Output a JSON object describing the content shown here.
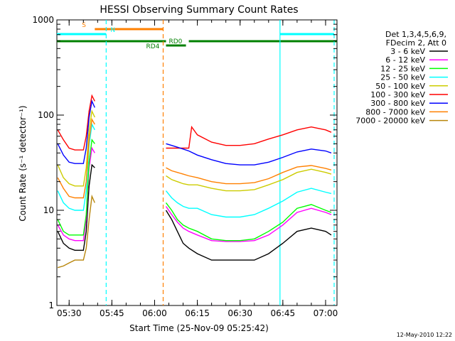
{
  "chart_data": {
    "type": "line",
    "title": "HESSI Observing Summary Count Rates",
    "xlabel": "Start Time (25-Nov-09 05:25:42)",
    "ylabel": "Count Rate (s⁻¹ detector⁻¹)",
    "yscale": "log",
    "ylim": [
      1,
      1000
    ],
    "xlim": [
      "05:25:42",
      "07:04:00"
    ],
    "x_tick_labels": [
      "05:30",
      "05:45",
      "06:00",
      "06:15",
      "06:30",
      "06:45",
      "07:00"
    ],
    "y_tick_labels": [
      "1",
      "10",
      "100",
      "1000"
    ],
    "legend_placement": "right",
    "legend_header": [
      "Det 1,3,4,5,6,9,",
      "FDecim 2, Att 0"
    ],
    "date_stamp": "12-May-2010 12:22",
    "series": [
      {
        "name": "3 - 6 keV",
        "color": "#000000",
        "x": [
          "05:26",
          "05:28",
          "05:30",
          "05:32",
          "05:35",
          "05:36",
          "05:37",
          "05:38",
          "05:39",
          "06:03",
          "06:04",
          "06:06",
          "06:08",
          "06:10",
          "06:12",
          "06:15",
          "06:20",
          "06:25",
          "06:30",
          "06:35",
          "06:40",
          "06:45",
          "06:50",
          "06:55",
          "07:00",
          "07:02"
        ],
        "y": [
          6,
          4.5,
          4,
          3.8,
          3.8,
          6,
          18,
          30,
          28,
          null,
          10,
          8,
          6,
          4.5,
          4,
          3.5,
          3,
          3,
          3,
          3,
          3.5,
          4.5,
          6,
          6.5,
          6,
          5.5
        ]
      },
      {
        "name": "6 - 12 keV",
        "color": "#ff00ff",
        "x": [
          "05:26",
          "05:28",
          "05:30",
          "05:32",
          "05:35",
          "05:36",
          "05:37",
          "05:38",
          "05:39",
          "06:03",
          "06:04",
          "06:06",
          "06:08",
          "06:10",
          "06:12",
          "06:15",
          "06:20",
          "06:25",
          "06:30",
          "06:35",
          "06:40",
          "06:45",
          "06:50",
          "06:55",
          "07:00",
          "07:02"
        ],
        "y": [
          7,
          5.5,
          5,
          4.8,
          4.8,
          8,
          28,
          45,
          40,
          null,
          11,
          9,
          7.5,
          6.5,
          6,
          5.5,
          4.8,
          4.7,
          4.7,
          4.8,
          5.5,
          7,
          9.5,
          10.5,
          9.5,
          9
        ]
      },
      {
        "name": "12 - 25 keV",
        "color": "#00ff00",
        "x": [
          "05:26",
          "05:28",
          "05:30",
          "05:32",
          "05:35",
          "05:36",
          "05:37",
          "05:38",
          "05:39",
          "06:03",
          "06:04",
          "06:06",
          "06:08",
          "06:10",
          "06:12",
          "06:15",
          "06:20",
          "06:25",
          "06:30",
          "06:35",
          "06:40",
          "06:45",
          "06:50",
          "06:55",
          "07:00",
          "07:02"
        ],
        "y": [
          8,
          6,
          5.5,
          5.5,
          5.5,
          9,
          32,
          55,
          50,
          null,
          12,
          10,
          8,
          7,
          6.5,
          6,
          5,
          4.8,
          4.8,
          5,
          6,
          7.5,
          10.5,
          11.5,
          10,
          9.5
        ]
      },
      {
        "name": "25 - 50 keV",
        "color": "#00ffff",
        "x": [
          "05:26",
          "05:28",
          "05:30",
          "05:32",
          "05:35",
          "05:36",
          "05:37",
          "05:38",
          "05:39",
          "06:03",
          "06:04",
          "06:06",
          "06:08",
          "06:10",
          "06:12",
          "06:15",
          "06:20",
          "06:25",
          "06:30",
          "06:35",
          "06:40",
          "06:45",
          "06:50",
          "06:55",
          "07:00",
          "07:02"
        ],
        "y": [
          16,
          12,
          10.5,
          10,
          10,
          16,
          48,
          80,
          70,
          null,
          16,
          13.5,
          12,
          11,
          10.5,
          10.5,
          9,
          8.5,
          8.5,
          9,
          10.5,
          12.5,
          15.5,
          17,
          15.5,
          15
        ]
      },
      {
        "name": "50 - 100 keV",
        "color": "#cccc00",
        "x": [
          "05:26",
          "05:28",
          "05:30",
          "05:32",
          "05:35",
          "05:36",
          "05:37",
          "05:38",
          "05:39",
          "06:03",
          "06:04",
          "06:06",
          "06:08",
          "06:10",
          "06:12",
          "06:15",
          "06:20",
          "06:25",
          "06:30",
          "06:35",
          "06:40",
          "06:45",
          "06:50",
          "06:55",
          "07:00",
          "07:02"
        ],
        "y": [
          30,
          22,
          19,
          18,
          18,
          28,
          70,
          110,
          95,
          null,
          23,
          21,
          20,
          19,
          18.5,
          18.5,
          17,
          16,
          16,
          16.5,
          18.5,
          21,
          25,
          27,
          25,
          24
        ]
      },
      {
        "name": "100 - 300 keV",
        "color": "#ff0000",
        "x": [
          "05:26",
          "05:28",
          "05:30",
          "05:32",
          "05:35",
          "05:36",
          "05:37",
          "05:38",
          "05:39",
          "06:03",
          "06:04",
          "06:06",
          "06:08",
          "06:10",
          "06:12",
          "06:13",
          "06:15",
          "06:20",
          "06:25",
          "06:30",
          "06:35",
          "06:40",
          "06:45",
          "06:50",
          "06:55",
          "07:00",
          "07:02"
        ],
        "y": [
          70,
          55,
          45,
          43,
          43,
          60,
          110,
          160,
          140,
          null,
          45,
          45,
          45,
          45,
          45,
          75,
          62,
          52,
          48,
          48,
          50,
          56,
          62,
          70,
          75,
          70,
          66
        ]
      },
      {
        "name": "300 - 800 keV",
        "color": "#0000ff",
        "x": [
          "05:26",
          "05:28",
          "05:30",
          "05:32",
          "05:35",
          "05:36",
          "05:37",
          "05:38",
          "05:39",
          "06:03",
          "06:04",
          "06:06",
          "06:08",
          "06:10",
          "06:12",
          "06:15",
          "06:20",
          "06:25",
          "06:30",
          "06:35",
          "06:40",
          "06:45",
          "06:50",
          "06:55",
          "07:00",
          "07:02"
        ],
        "y": [
          50,
          38,
          32,
          31,
          31,
          45,
          95,
          140,
          120,
          null,
          50,
          48,
          46,
          44,
          42,
          38,
          34,
          31,
          30,
          30,
          32,
          36,
          41,
          44,
          42,
          40
        ]
      },
      {
        "name": "800 - 7000 keV",
        "color": "#ff8000",
        "x": [
          "05:26",
          "05:28",
          "05:30",
          "05:32",
          "05:35",
          "05:36",
          "05:37",
          "05:38",
          "05:39",
          "06:03",
          "06:04",
          "06:06",
          "06:08",
          "06:10",
          "06:12",
          "06:15",
          "06:20",
          "06:25",
          "06:30",
          "06:35",
          "06:40",
          "06:45",
          "06:50",
          "06:55",
          "07:00",
          "07:02"
        ],
        "y": [
          22,
          17,
          14,
          13.5,
          13.5,
          20,
          55,
          90,
          80,
          null,
          28,
          26,
          25,
          24,
          23,
          22,
          20,
          19,
          19,
          19.5,
          21.5,
          25,
          28.5,
          29.5,
          27.5,
          26.5
        ]
      },
      {
        "name": "7000 - 20000 keV",
        "color": "#b8860b",
        "x": [
          "05:26",
          "05:28",
          "05:30",
          "05:32",
          "05:35",
          "05:36",
          "05:37",
          "05:38",
          "05:39"
        ],
        "y": [
          2.5,
          2.6,
          2.8,
          3,
          3,
          4,
          8,
          14,
          12
        ]
      }
    ],
    "state_bars": [
      {
        "label": "S",
        "color": "#ff8000",
        "start": "05:39",
        "end": "06:03"
      },
      {
        "label": "N",
        "color": "#00ffff",
        "start": "05:25:42",
        "end": "05:43"
      },
      {
        "label": "",
        "color": "#00ffff",
        "start": "06:44",
        "end": "07:03"
      },
      {
        "label": "RD0",
        "color": "#008000",
        "start": "06:04",
        "end": "06:11"
      },
      {
        "label": "RD4",
        "color": "#008000",
        "start": "05:25:42",
        "end": "06:04"
      },
      {
        "label": "",
        "color": "#008000",
        "start": "06:12",
        "end": "07:04"
      }
    ],
    "vertical_markers": [
      {
        "time": "05:43",
        "color": "#00ffff",
        "style": "dashed"
      },
      {
        "time": "06:03",
        "color": "#ff8000",
        "style": "dashed"
      },
      {
        "time": "06:44",
        "color": "#00ffff",
        "style": "solid"
      },
      {
        "time": "07:03",
        "color": "#00ffff",
        "style": "dashed"
      }
    ]
  }
}
